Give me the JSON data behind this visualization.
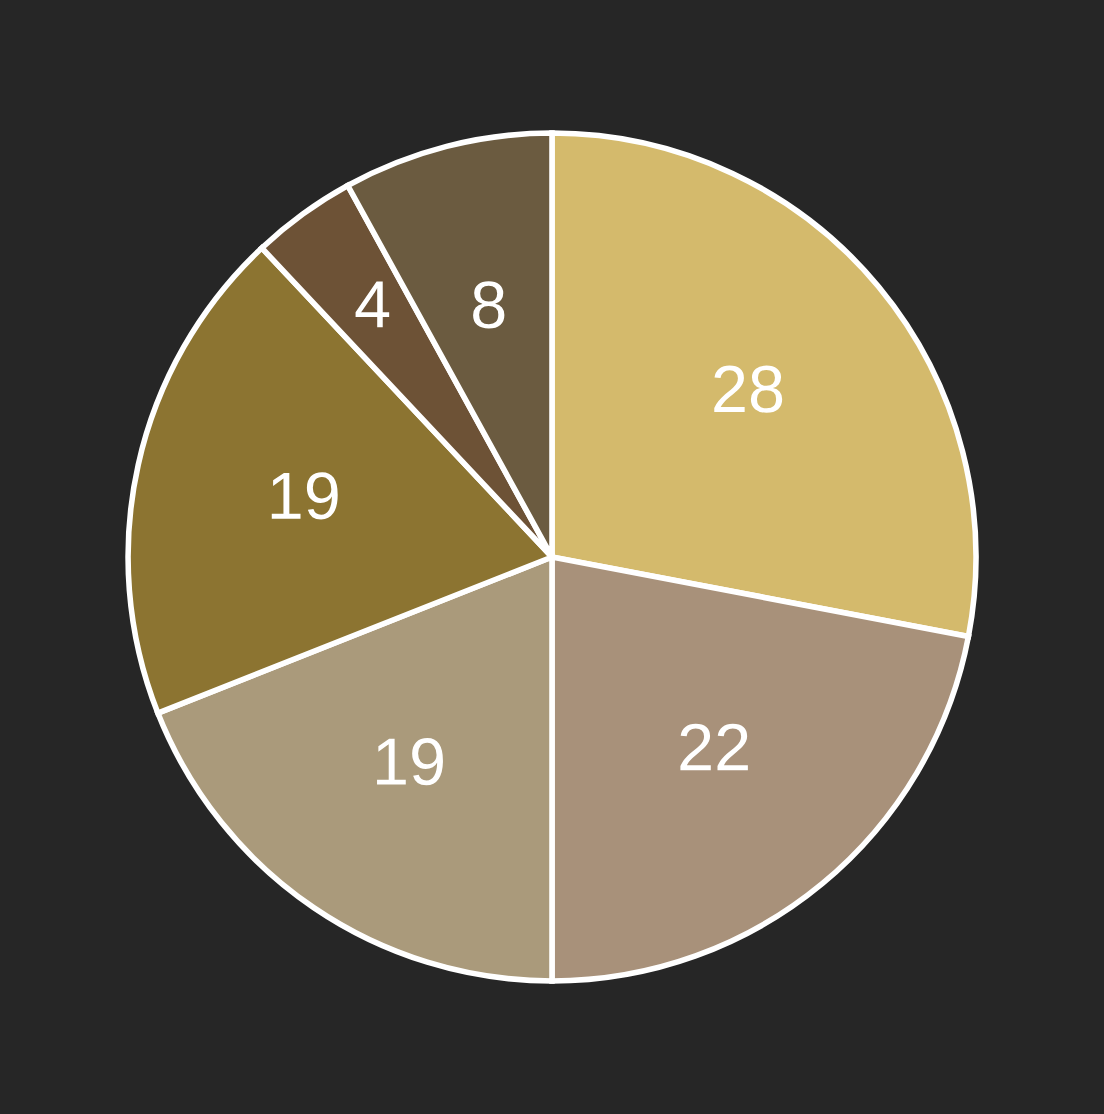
{
  "chart_data": {
    "type": "pie",
    "categories": [
      null,
      null,
      null,
      null,
      null,
      null
    ],
    "values": [
      28,
      22,
      19,
      19,
      4,
      8
    ],
    "colors": [
      "#d4ba6c",
      "#a8917a",
      "#aa9a7b",
      "#8c7431",
      "#6d5236",
      "#6b5b40"
    ],
    "data_labels": true
  }
}
